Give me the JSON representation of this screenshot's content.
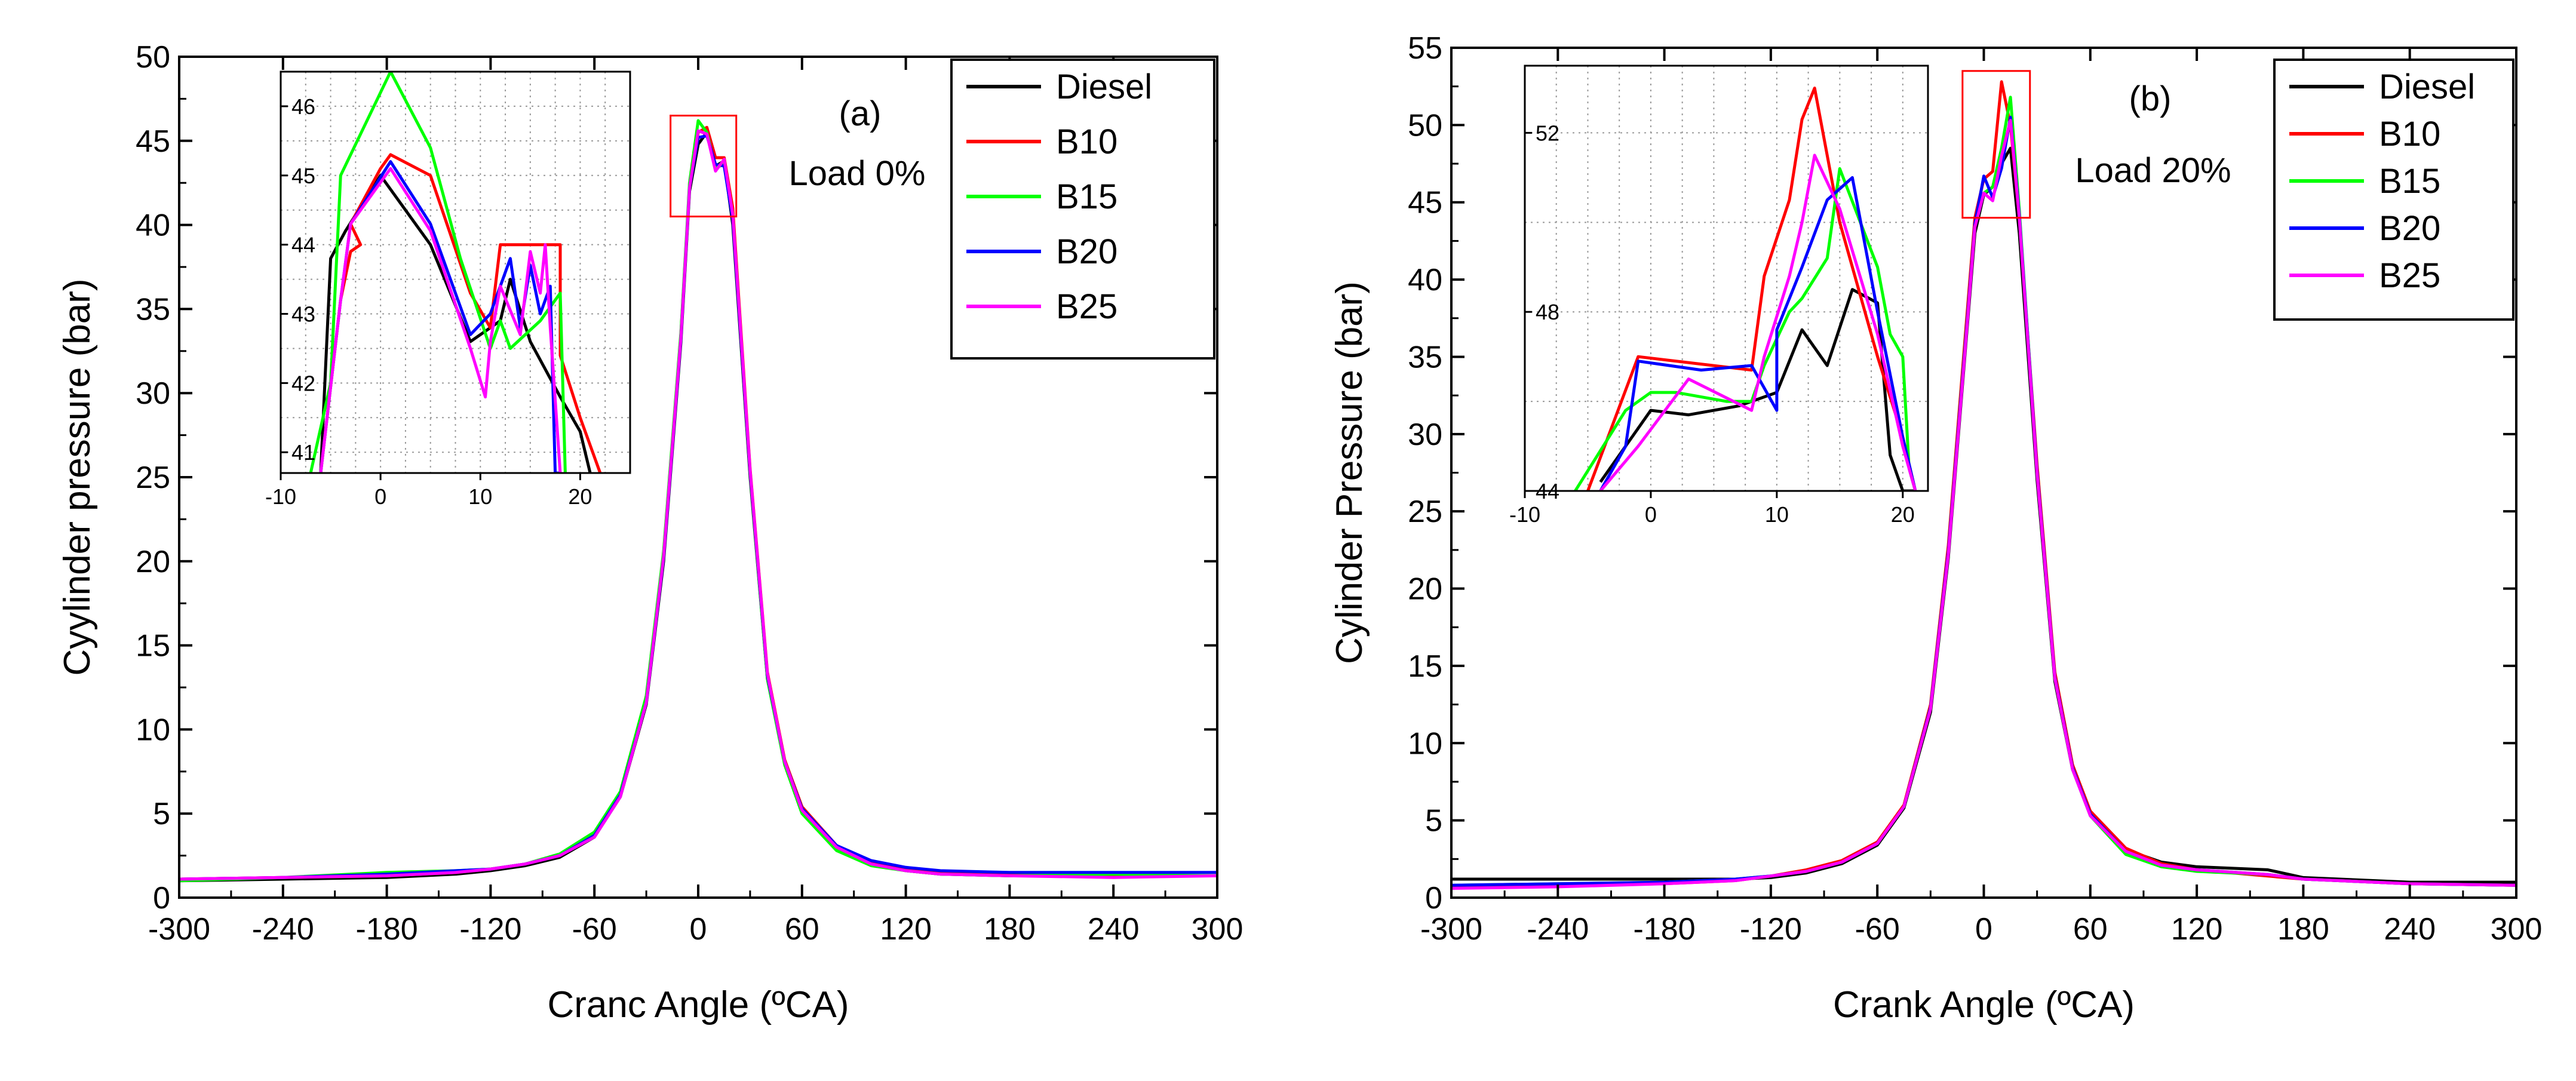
{
  "colors": {
    "Diesel": "#000000",
    "B10": "#ff0000",
    "B15": "#00ff00",
    "B20": "#0000ff",
    "B25": "#ff00ff",
    "zoom_box": "#ff0000",
    "axis": "#000000"
  },
  "chart_data": [
    {
      "type": "line",
      "panel_label": "(a)",
      "condition": "Load 0%",
      "xlabel": "Cranc Angle (ºCA)",
      "ylabel": "Cyylinder pressure (bar)",
      "xlim": [
        -300,
        300
      ],
      "ylim": [
        0,
        50
      ],
      "xticks": [
        -300,
        -240,
        -180,
        -120,
        -60,
        0,
        60,
        120,
        180,
        240,
        300
      ],
      "yticks": [
        0,
        5,
        10,
        15,
        20,
        25,
        30,
        35,
        40,
        45,
        50
      ],
      "legend": [
        "Diesel",
        "B10",
        "B15",
        "B20",
        "B25"
      ],
      "legend_position": "top-right",
      "peak_highlight": {
        "x": [
          -16,
          22
        ],
        "y": [
          40.5,
          46.5
        ]
      },
      "series": [
        {
          "name": "Diesel",
          "x": [
            -300,
            -240,
            -180,
            -140,
            -120,
            -100,
            -80,
            -60,
            -45,
            -30,
            -20,
            -10,
            -5,
            0,
            5,
            10,
            15,
            20,
            30,
            40,
            50,
            60,
            80,
            100,
            120,
            140,
            180,
            240,
            300
          ],
          "y": [
            1.0,
            1.1,
            1.2,
            1.4,
            1.6,
            1.9,
            2.4,
            3.6,
            6.0,
            11.5,
            20.0,
            33.0,
            42.0,
            44.8,
            45.5,
            43.5,
            43.8,
            40.0,
            25.0,
            13.0,
            8.0,
            5.2,
            3.0,
            2.0,
            1.6,
            1.4,
            1.3,
            1.3,
            1.3
          ]
        },
        {
          "name": "B10",
          "x": [
            -300,
            -240,
            -180,
            -140,
            -120,
            -100,
            -80,
            -60,
            -45,
            -30,
            -20,
            -10,
            -5,
            0,
            5,
            10,
            15,
            20,
            30,
            40,
            50,
            60,
            80,
            100,
            120,
            140,
            180,
            240,
            300
          ],
          "y": [
            1.1,
            1.2,
            1.3,
            1.5,
            1.7,
            2.0,
            2.5,
            3.7,
            6.2,
            11.8,
            20.5,
            33.5,
            42.3,
            45.5,
            45.8,
            44.0,
            44.0,
            41.0,
            25.5,
            13.4,
            8.2,
            5.4,
            3.1,
            2.1,
            1.7,
            1.5,
            1.4,
            1.3,
            1.3
          ]
        },
        {
          "name": "B15",
          "x": [
            -300,
            -240,
            -180,
            -140,
            -120,
            -100,
            -80,
            -60,
            -45,
            -30,
            -20,
            -10,
            -5,
            0,
            5,
            10,
            15,
            20,
            30,
            40,
            50,
            60,
            80,
            100,
            120,
            140,
            180,
            240,
            300
          ],
          "y": [
            1.0,
            1.2,
            1.5,
            1.6,
            1.7,
            2.0,
            2.6,
            3.9,
            6.3,
            12.0,
            20.6,
            33.6,
            42.5,
            46.2,
            45.5,
            43.4,
            43.6,
            40.5,
            25.2,
            13.0,
            7.9,
            5.0,
            2.8,
            1.9,
            1.6,
            1.4,
            1.3,
            1.4,
            1.3
          ]
        },
        {
          "name": "B20",
          "x": [
            -300,
            -240,
            -180,
            -140,
            -120,
            -100,
            -80,
            -60,
            -45,
            -30,
            -20,
            -10,
            -5,
            0,
            5,
            10,
            15,
            20,
            30,
            40,
            50,
            60,
            80,
            100,
            120,
            140,
            180,
            240,
            300
          ],
          "y": [
            1.1,
            1.2,
            1.4,
            1.6,
            1.7,
            2.0,
            2.5,
            3.7,
            6.1,
            11.6,
            20.2,
            33.2,
            42.2,
            45.2,
            45.3,
            43.6,
            43.5,
            40.3,
            25.3,
            13.2,
            8.1,
            5.3,
            3.1,
            2.2,
            1.8,
            1.6,
            1.5,
            1.5,
            1.5
          ]
        },
        {
          "name": "B25",
          "x": [
            -300,
            -240,
            -180,
            -140,
            -120,
            -100,
            -80,
            -60,
            -45,
            -30,
            -20,
            -10,
            -5,
            0,
            5,
            10,
            15,
            20,
            30,
            40,
            50,
            60,
            80,
            100,
            120,
            140,
            180,
            240,
            300
          ],
          "y": [
            1.1,
            1.2,
            1.3,
            1.5,
            1.7,
            2.0,
            2.5,
            3.6,
            6.0,
            11.6,
            20.3,
            33.3,
            42.2,
            45.6,
            45.4,
            43.2,
            43.9,
            40.6,
            25.4,
            13.3,
            8.1,
            5.2,
            3.0,
            2.0,
            1.6,
            1.4,
            1.3,
            1.2,
            1.3
          ]
        }
      ],
      "inset": {
        "xlim": [
          -10,
          25
        ],
        "ylim": [
          40.7,
          46.5
        ],
        "xticks": [
          -10,
          0,
          10,
          20
        ],
        "yticks": [
          41,
          42,
          43,
          44,
          45,
          46
        ],
        "series": [
          {
            "name": "Diesel",
            "x": [
              -6,
              -5,
              -3.5,
              0,
              5,
              9,
              12,
              13,
              15,
              18,
              20,
              21
            ],
            "y": [
              40.7,
              43.8,
              44.2,
              45.0,
              44.0,
              42.6,
              42.9,
              43.5,
              42.6,
              41.8,
              41.3,
              40.7
            ]
          },
          {
            "name": "B10",
            "x": [
              -6,
              -4,
              -3,
              -2,
              -3,
              0,
              1,
              5,
              9,
              11,
              12,
              18,
              18,
              20,
              22
            ],
            "y": [
              40.7,
              43.2,
              43.9,
              44.0,
              44.3,
              45.1,
              45.3,
              45.0,
              43.3,
              42.8,
              44.0,
              44.0,
              42.4,
              41.5,
              40.7
            ]
          },
          {
            "name": "B15",
            "x": [
              -7,
              -5,
              -4,
              1,
              5,
              8,
              11,
              12,
              13,
              16,
              18,
              18.5
            ],
            "y": [
              40.7,
              42.0,
              45.0,
              46.5,
              45.4,
              43.8,
              42.5,
              42.9,
              42.5,
              42.9,
              43.3,
              40.7
            ]
          },
          {
            "name": "B20",
            "x": [
              -6,
              -4,
              -3,
              1,
              5,
              9,
              11,
              13,
              14,
              15,
              16,
              17,
              17.5,
              18
            ],
            "y": [
              40.7,
              43.2,
              44.3,
              45.2,
              44.3,
              42.7,
              43.0,
              43.8,
              42.8,
              43.7,
              43.0,
              43.4,
              40.7,
              40.7
            ]
          },
          {
            "name": "B25",
            "x": [
              -6,
              -4,
              -3,
              1,
              5,
              9,
              10.5,
              11,
              12,
              14,
              15,
              16,
              16.5,
              17,
              18
            ],
            "y": [
              40.7,
              43.2,
              44.3,
              45.1,
              44.2,
              42.5,
              41.8,
              42.6,
              43.4,
              42.7,
              43.9,
              43.3,
              44.0,
              42.8,
              40.7
            ]
          }
        ]
      }
    },
    {
      "type": "line",
      "panel_label": "(b)",
      "condition": "Load 20%",
      "xlabel": "Crank Angle (ºCA)",
      "ylabel": "Cylinder Pressure (bar)",
      "xlim": [
        -300,
        300
      ],
      "ylim": [
        0,
        55
      ],
      "xticks": [
        -300,
        -240,
        -180,
        -120,
        -60,
        0,
        60,
        120,
        180,
        240,
        300
      ],
      "yticks": [
        0,
        5,
        10,
        15,
        20,
        25,
        30,
        35,
        40,
        45,
        50,
        55
      ],
      "legend": [
        "Diesel",
        "B10",
        "B15",
        "B20",
        "B25"
      ],
      "legend_position": "top-right",
      "peak_highlight": {
        "x": [
          -12,
          26
        ],
        "y": [
          44,
          53.5
        ]
      },
      "series": [
        {
          "name": "Diesel",
          "x": [
            -300,
            -240,
            -180,
            -140,
            -120,
            -100,
            -80,
            -60,
            -45,
            -30,
            -20,
            -10,
            -5,
            0,
            5,
            10,
            15,
            20,
            30,
            40,
            50,
            60,
            80,
            100,
            120,
            160,
            180,
            240,
            300
          ],
          "y": [
            1.2,
            1.2,
            1.2,
            1.2,
            1.3,
            1.6,
            2.2,
            3.4,
            5.8,
            12.0,
            22.0,
            36.0,
            43.0,
            45.5,
            46.0,
            47.5,
            48.5,
            43.0,
            27.0,
            14.0,
            8.3,
            5.4,
            3.1,
            2.3,
            2.0,
            1.8,
            1.3,
            1.0,
            1.0
          ]
        },
        {
          "name": "B10",
          "x": [
            -300,
            -240,
            -180,
            -140,
            -120,
            -100,
            -80,
            -60,
            -45,
            -30,
            -20,
            -10,
            -5,
            0,
            5,
            10,
            15,
            20,
            30,
            40,
            50,
            60,
            80,
            100,
            120,
            160,
            180,
            240,
            300
          ],
          "y": [
            0.7,
            0.8,
            0.9,
            1.1,
            1.4,
            1.8,
            2.4,
            3.6,
            6.0,
            12.5,
            22.8,
            37.0,
            44.0,
            46.5,
            47.0,
            52.8,
            50.0,
            44.0,
            28.0,
            14.6,
            8.6,
            5.6,
            3.2,
            2.2,
            1.8,
            1.4,
            1.2,
            0.9,
            0.8
          ]
        },
        {
          "name": "B15",
          "x": [
            -300,
            -240,
            -180,
            -140,
            -120,
            -100,
            -80,
            -60,
            -45,
            -30,
            -20,
            -10,
            -5,
            0,
            5,
            10,
            15,
            20,
            30,
            40,
            50,
            60,
            80,
            100,
            120,
            160,
            180,
            240,
            300
          ],
          "y": [
            0.8,
            0.9,
            1.0,
            1.2,
            1.4,
            1.7,
            2.3,
            3.5,
            5.9,
            12.3,
            22.4,
            36.5,
            43.5,
            45.6,
            46.0,
            48.5,
            51.8,
            44.5,
            27.5,
            14.2,
            8.3,
            5.3,
            2.8,
            2.0,
            1.7,
            1.5,
            1.2,
            0.9,
            0.8
          ]
        },
        {
          "name": "B20",
          "x": [
            -300,
            -240,
            -180,
            -140,
            -120,
            -100,
            -80,
            -60,
            -45,
            -30,
            -20,
            -10,
            -5,
            0,
            5,
            10,
            15,
            20,
            30,
            40,
            50,
            60,
            80,
            100,
            120,
            160,
            180,
            240,
            300
          ],
          "y": [
            0.8,
            0.9,
            1.0,
            1.2,
            1.4,
            1.7,
            2.3,
            3.5,
            5.9,
            12.3,
            22.4,
            36.4,
            43.6,
            46.7,
            45.3,
            47.2,
            50.5,
            44.2,
            27.6,
            14.3,
            8.4,
            5.4,
            3.0,
            2.1,
            1.8,
            1.5,
            1.2,
            0.9,
            0.8
          ]
        },
        {
          "name": "B25",
          "x": [
            -300,
            -240,
            -180,
            -140,
            -120,
            -100,
            -80,
            -60,
            -45,
            -30,
            -20,
            -10,
            -5,
            0,
            5,
            10,
            15,
            20,
            30,
            40,
            50,
            60,
            80,
            100,
            120,
            160,
            180,
            240,
            300
          ],
          "y": [
            0.6,
            0.7,
            0.9,
            1.1,
            1.4,
            1.7,
            2.3,
            3.5,
            5.9,
            12.2,
            22.2,
            36.2,
            43.4,
            45.6,
            45.1,
            48.0,
            50.3,
            44.0,
            27.4,
            14.2,
            8.3,
            5.3,
            3.0,
            2.1,
            1.8,
            1.5,
            1.2,
            0.9,
            0.8
          ]
        }
      ],
      "inset": {
        "xlim": [
          -10,
          22
        ],
        "ylim": [
          44,
          53.5
        ],
        "xticks": [
          -10,
          0,
          10,
          20
        ],
        "yticks": [
          44,
          48,
          52
        ],
        "series": [
          {
            "name": "Diesel",
            "x": [
              -4,
              0,
              3,
              7,
              10,
              12,
              14,
              16,
              18,
              19,
              20,
              21
            ],
            "y": [
              44.2,
              45.8,
              45.7,
              45.9,
              46.2,
              47.6,
              46.8,
              48.5,
              48.2,
              44.8,
              44.0,
              44.0
            ]
          },
          {
            "name": "B10",
            "x": [
              -5,
              -1,
              8,
              9,
              11,
              12,
              13,
              15,
              18,
              20,
              21
            ],
            "y": [
              44.0,
              47.0,
              46.7,
              48.8,
              50.5,
              52.3,
              53.0,
              50.0,
              47.0,
              45.2,
              44.0
            ]
          },
          {
            "name": "B15",
            "x": [
              -6,
              -2,
              0,
              2,
              6,
              8,
              9,
              11,
              12,
              14,
              15,
              18,
              19,
              20,
              20.5,
              21
            ],
            "y": [
              44.0,
              45.8,
              46.2,
              46.2,
              46.0,
              46.0,
              46.8,
              48.0,
              48.3,
              49.2,
              51.2,
              49.0,
              47.5,
              47.0,
              44.5,
              44.0
            ]
          },
          {
            "name": "B20",
            "x": [
              -4,
              -2,
              -1,
              4,
              8,
              10,
              10,
              12,
              14,
              16,
              18,
              20,
              21
            ],
            "y": [
              44.0,
              45.0,
              46.9,
              46.7,
              46.8,
              45.8,
              47.6,
              49.0,
              50.5,
              51.0,
              48.0,
              45.2,
              44.0
            ]
          },
          {
            "name": "B25",
            "x": [
              -4,
              -1,
              3,
              8,
              9,
              11,
              12,
              13,
              15,
              18,
              20,
              21
            ],
            "y": [
              44.0,
              45.0,
              46.5,
              45.8,
              47.0,
              48.8,
              50.0,
              51.5,
              50.3,
              47.5,
              45.0,
              44.0
            ]
          }
        ]
      }
    }
  ]
}
